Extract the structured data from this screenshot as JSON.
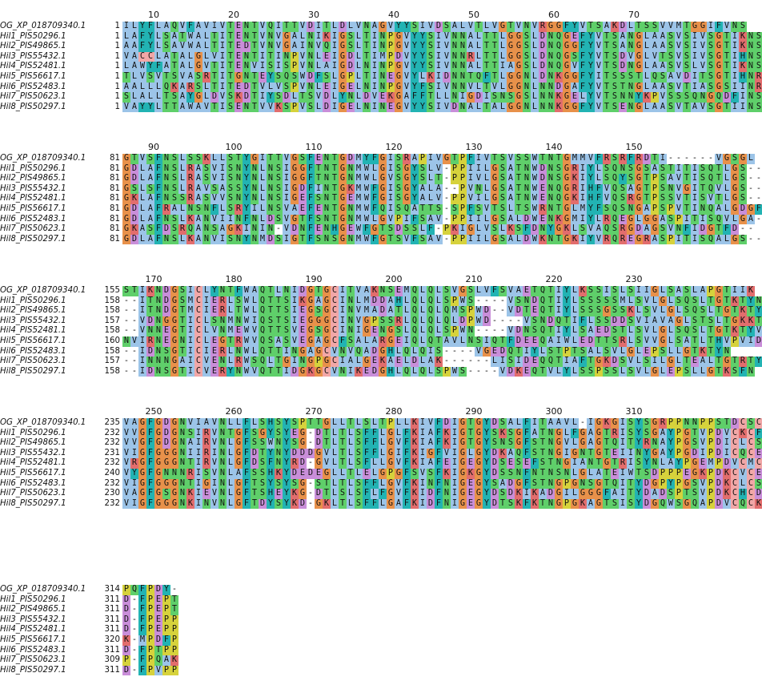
{
  "colors": {
    "hydrophobic": "#9cc4e8",
    "positive": "#e26d6d",
    "negative": "#c98ed9",
    "polar": "#5fcf6a",
    "cysteine": "#f2a7a7",
    "glycine": "#e8914a",
    "proline": "#d6d23c",
    "aromatic": "#22b3b3",
    "gap": "#ffffff"
  },
  "residue_class": {
    "A": "hydrophobic",
    "I": "hydrophobic",
    "L": "hydrophobic",
    "M": "hydrophobic",
    "F": "aromatic",
    "W": "hydrophobic",
    "V": "hydrophobic",
    "K": "positive",
    "R": "positive",
    "E": "negative",
    "D": "negative",
    "N": "polar",
    "Q": "polar",
    "S": "polar",
    "T": "polar",
    "C": "cysteine",
    "G": "glycine",
    "P": "proline",
    "H": "aromatic",
    "Y": "aromatic",
    "-": "gap"
  },
  "blocks": [
    {
      "ruler": [
        10,
        20,
        30,
        40,
        50,
        60,
        70
      ],
      "rows": [
        {
          "name": "OG_XP_018709340.1",
          "start": "1",
          "seq": "ILYFLAQVFAVIVTENTVQITTVDITLDLVNAGVYYSIVDSALVTLVGTVNVRGGFYVTSAKDLTSSVVMTGGIFVNS"
        },
        {
          "name": "Hil1_PIS50296.1",
          "start": "1",
          "seq": "LAFYLSATWALTITENTVNVGALNIKIGSLTINPGVYYSIVNNALTTLGGSLDNQGEFYVTSANGLAASVSIVSGTIKNS"
        },
        {
          "name": "Hil2_PIS49865.1",
          "start": "1",
          "seq": "AAFYLSAVWALTITEDTVNVGAINVQIGSLTINPGVYYSIVNNALTTLGGSLDNQGGFYVTSANGLAASVSIVSGTIKNS"
        },
        {
          "name": "Hil3_PIS55432.1",
          "start": "1",
          "seq": "VACCLATALGLVITENTITINPVNLEIGDLTIMPDVYYSIVNNRLTTLGGSLDNQGSFYVTSDVGLVTSVSIVSGTIHNS"
        },
        {
          "name": "Hil4_PIS52481.1",
          "start": "1",
          "seq": "LAWYFATALGVTITENVISISPVNLAIGDLNINPGVYYSIVNNALTTIAGSLDNQGVFYVTSDNGLAASVSLVSGTIKNS"
        },
        {
          "name": "Hil5_PIS56617.1",
          "start": "1",
          "seq": "TLVSVTSVASRTITGNTEYSQSWDFSLGPLTINEGVYLKIDNNTQFTLGGNLDNKGGFYITSSSTLQSAVDITSGTIHNR"
        },
        {
          "name": "Hil6_PIS52483.1",
          "start": "1",
          "seq": "AALLLQKARSLTITEDTVLVSPVNLEIGELNINPGVYFSIVNNVLTVLGGNLNNDGAFYVTSTNGLAASVTIASGSIINR"
        },
        {
          "name": "Hil7_PIS50623.1",
          "start": "1",
          "seq": "SLALLTSAYGLDVSKDTIYSDLTSVDLYNLDVEKGAFFTLLNIGDISNSGSLNNKGELYVTSNNYKPVSSSQNGQDFINS"
        },
        {
          "name": "Hil8_PIS50297.1",
          "start": "1",
          "seq": "VAYYLTTAWAVTISENTVVKSPVSLDIGELNINEGVYYSIVDNALTALGGNLNNKGGFYVTSENGLAASVTAVSGTIINS"
        }
      ]
    },
    {
      "ruler": [
        90,
        100,
        110,
        120,
        130,
        140,
        150
      ],
      "rows": [
        {
          "name": "OG_XP_018709340.1",
          "start": "81",
          "seq": "GTVSFNSLSSKLLSTYGITTVGSFENTGDMYFGISRAPIVGTPFIVTSVSSWTNTGMMVFRSRFRDTI------VGSGL"
        },
        {
          "name": "Hil1_PIS50296.1",
          "start": "81",
          "seq": "GDLAFNSLRASVISNYNLNSIGGFTNTGNMWLGISGYSLV-PPIILGSATNWDNSGRIYLSQNSGSASTITISQTLGS--"
        },
        {
          "name": "Hil2_PIS49865.1",
          "start": "81",
          "seq": "GDLAFNSLRASVISNYNLNSIGGFTNTGNMWLGVSGYSLT-PPIVLGSATNWDNSGKIYLSQYSGTPSAVTISQTLGS--"
        },
        {
          "name": "Hil3_PIS55432.1",
          "start": "81",
          "seq": "GSLSFNSLRAVSASSYNLNSIGDFINTGKMWFGISGYALA--PVNLGSATNWENQGRIHFVQSAGTPSNVGITQVLGS--"
        },
        {
          "name": "Hil4_PIS52481.1",
          "start": "81",
          "seq": "GKLAFNSSRASVVSNYNLNSIGEFSNTGEMWFGISGYALV-PPVILGSATNWENQGKIHFVQSRGTPSSVTISVTLGS--"
        },
        {
          "name": "Hil5_PIS56617.1",
          "start": "81",
          "seq": "GDLAFRALNSNFLSRYILNSVAEFENTGNMWFQISQATTS-SPFSVTSLTSWRNTGLMYFSQSNGAPSPVTINQALGDGF"
        },
        {
          "name": "Hil6_PIS52483.1",
          "start": "81",
          "seq": "GDLAFNSLKANVIINFNLDSVGTFSNTGNMWLGVPIFSAV-PPIILGSALDWENKGMIYLRQEGLGGASPITISQVLGA--"
        },
        {
          "name": "Hil7_PIS50623.1",
          "start": "81",
          "seq": "GKASFDSRQANSAGKININ-VDNFENHGEWFGTSDSSLF-PKIGLVSLKSFDNYGKLSVAQSRGDAGSVNFIDGTFD--"
        },
        {
          "name": "Hil8_PIS50297.1",
          "start": "81",
          "seq": "GDLAFNSLKANVISNYNMDSIGTFSNSGNMWFGTSVFSAV-PPIILGSALDWKNTGKIYVRQREGRASPITISQALGS--"
        }
      ]
    },
    {
      "ruler": [
        170,
        180,
        190,
        200,
        210,
        220,
        230
      ],
      "rows": [
        {
          "name": "OG_XP_018709340.1",
          "start": "155",
          "seq": "STIKNDGSICLYNTFWAQTLNIDGTGCITVAKNSEMQLQLSVGSLVFSVAETQTIYLKSSISLSIIGLSASLAPGTIIK"
        },
        {
          "name": "Hil1_PIS50296.1",
          "start": "158",
          "seq": "--ITNDGSMCIERLSWLQTTSIKGAGCINLMDDAHLQLQLSPWS----VSNDQTIYLSSSSSMLSVLGLSQSLTGTKTYN"
        },
        {
          "name": "Hil2_PIS49865.1",
          "start": "158",
          "seq": "--ITNDGTMCIERLTWLQTTSIEGSGCINVMADATLQLQLQMSPWD--VDTEQTIYLSSSGSSKLSVLGLSQSLTGTKTYT"
        },
        {
          "name": "Hil3_PIS55432.1",
          "start": "157",
          "seq": "--VDNGGTICLSNMNWIQSTSIEGGGCINVGPSSRLQLQLQLDPWD----VSNDQTIFLSSDDSVIAVAGLSTSLTGKKTYN"
        },
        {
          "name": "Hil4_PIS52481.1",
          "start": "158",
          "seq": "--VNNEGTICLVNMEWVQTTSVEGSGCINIGENGSLQLQLSPWN----VDNSQTIYLSAEDSTLSVLGLSQSLTGTKTYV"
        },
        {
          "name": "Hil5_PIS56617.1",
          "start": "160",
          "seq": "NVIRNEGNICLEGTRWVQSASVEGAGCFSALARGEIQLQTAVLNSIQTFDEEQAIWLEDTTSRLSVVGLSATLTHVPVID"
        },
        {
          "name": "Hil6_PIS52483.1",
          "start": "158",
          "seq": "--IDNSGTICIERLNWLQTTINGAGCVNVQADGHLQLQIS----VGEDQTIYLSTPTSALSVLGLEPSLLGTKTYN"
        },
        {
          "name": "Hil7_PIS50623.1",
          "start": "157",
          "seq": "--INNNGAICVENLRWSQLTGINGPGCIALGEKAELDLAK------LISIDEQQTIAFTGKDSVLSILGLTEALTGTRTYN"
        },
        {
          "name": "Hil8_PIS50297.1",
          "start": "158",
          "seq": "--IDNSGTICVERYNWVQTTIDGKGCVNIKEDGHLQLQLSPWS----VDKEQTVLYLSSPSSLSVLGLEPSLLGTKSFN"
        }
      ]
    },
    {
      "ruler": [
        250,
        260,
        270,
        280,
        290,
        300,
        310
      ],
      "rows": [
        {
          "name": "OG_XP_018709340.1",
          "start": "235",
          "seq": "VAGFGDGNVIAVNLLFLSHSYSPTTGLLTLSLTPLLKIVFDIGTGYDSALFITAAVL-IGKGISYSGRPPNNPPSTDCSC"
        },
        {
          "name": "Hil1_PIS50296.1",
          "start": "232",
          "seq": "VVGFGDGNSIRVNTGFSGYSYEG-DTLTLSFFLGLFKIAFKIGTGYSKSGFATNGLFGAGTRISYSGAYPGTVPDVCKCF"
        },
        {
          "name": "Hil2_PIS49865.1",
          "start": "232",
          "seq": "VVGFGDGNAIRVNLGFSSWNYSG-DTLTLSFFLGVFKIAFKIGTGYSNSGFSTNGVLGAGTQITYRNAYPGSVPDICLCS"
        },
        {
          "name": "Hil3_PIS55432.1",
          "start": "231",
          "seq": "VIGFGGGNIIRINLGFDTYNYDDDGVLTLSFFLGIFKIGFVIGLGYDKAQFSTNGIGNTGTEIINYGAYPGDIPDICQCE"
        },
        {
          "name": "Hil4_PIS52481.1",
          "start": "232",
          "seq": "VRGFGGGNTIRVNLGFDSFNYRD-GVLTLSFLLGVFKIAFEIGEGYDSESEFSTNGIANTGTRISYNLAYPGEMPDVCMCE"
        },
        {
          "name": "Hil5_PIS56617.1",
          "start": "240",
          "seq": "VYGFGNNNRISVNLAFSSHKYDEDEGLLTLELGPGFSVSFKIGKGYDSSNFNTNSNLGLATEIWTSDPPPEGKPDKCVCE"
        },
        {
          "name": "Hil6_PIS52483.1",
          "start": "232",
          "seq": "VIGFGGGNTIGINLGFTSYSYSG-STLTLSFFLGVFKINFNIGEGYSADGFSTNGPGNSGTQITYDGPYPGSVPDKCLCS"
        },
        {
          "name": "Hil7_PIS50623.1",
          "start": "230",
          "seq": "VAGFGSGNKIEVNLGFTSHEYKG-DTLSLSFLFGVFKIDFNIGEGYDSDKIKADGILGGGFAITYDADSPTSVPDKCHCD"
        },
        {
          "name": "Hil8_PIS50297.1",
          "start": "232",
          "seq": "VIGFGGGNKINVNLGFTDYSYKD-GKLTLSFFLGAFKIDFNIGEGYDTSKFKTNGPGKAGTSISYDGQWSGQAPDVCQCK"
        }
      ]
    },
    {
      "ruler": [],
      "rows": [
        {
          "name": "OG_XP_018709340.1",
          "start": "314",
          "seq": "PQFPDY-"
        },
        {
          "name": "Hil1_PIS50296.1",
          "start": "311",
          "seq": "D-FPEPT"
        },
        {
          "name": "Hil2_PIS49865.1",
          "start": "311",
          "seq": "D-FPEPT"
        },
        {
          "name": "Hil3_PIS55432.1",
          "start": "311",
          "seq": "D-FPEPP"
        },
        {
          "name": "Hil4_PIS52481.1",
          "start": "311",
          "seq": "D-FPEPP"
        },
        {
          "name": "Hil5_PIS56617.1",
          "start": "320",
          "seq": "K-MPDFP"
        },
        {
          "name": "Hil6_PIS52483.1",
          "start": "311",
          "seq": "D-FPTPP"
        },
        {
          "name": "Hil7_PIS50623.1",
          "start": "309",
          "seq": "P-FPQAK"
        },
        {
          "name": "Hil8_PIS50297.1",
          "start": "311",
          "seq": "D-FPVPP"
        }
      ]
    }
  ]
}
